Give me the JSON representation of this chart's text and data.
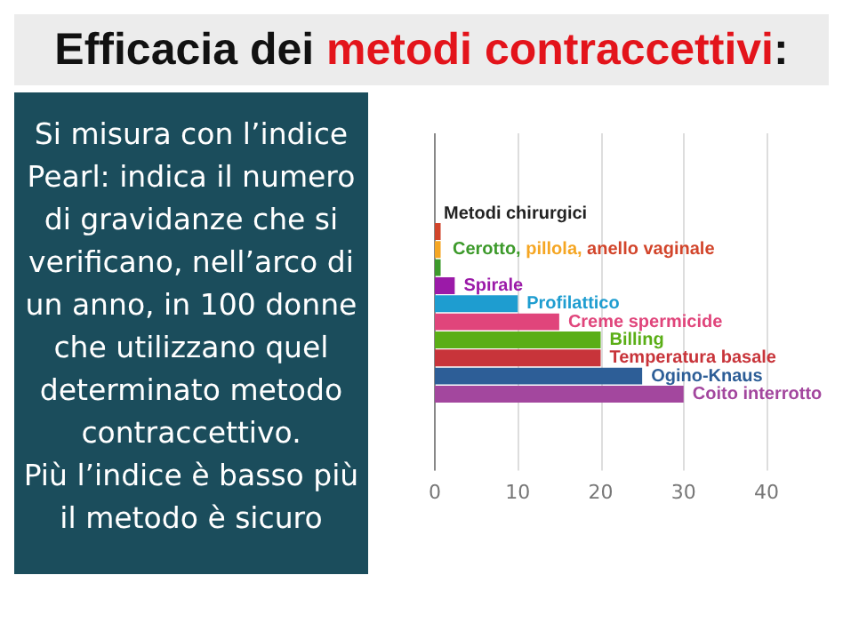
{
  "chart_data": {
    "type": "bar",
    "orientation": "horizontal",
    "title": "Efficacia dei metodi contraccettivi:",
    "categories": [
      "Metodi chirurgici",
      null,
      null,
      null,
      "Spirale",
      "Profilattico",
      "Creme spermicide",
      "Billing",
      "Temperatura basale",
      "Ogino-Knaus",
      "Coito interrotto"
    ],
    "values": [
      0,
      0.7,
      0.7,
      0.7,
      2.4,
      10,
      15,
      20,
      20,
      25,
      30
    ],
    "colors": [
      "#222222",
      "#d2452b",
      "#f5a623",
      "#3d9a2b",
      "#9b1aa8",
      "#1e9dd0",
      "#e0457b",
      "#5aae16",
      "#c8343a",
      "#2d5e97",
      "#a3479e"
    ],
    "xlim": [
      0,
      40
    ],
    "xticks": [
      0,
      10,
      20,
      30,
      40
    ],
    "grid": "x",
    "legend": false,
    "tick_labels": "x",
    "annotations": [
      "Cerotto, pillola, anello vaginale",
      "Si misura con l’indice Pearl: indica il numero di gravidanze che si verificano, nell’arco di un anno, in 100 donne che utilizzano quel determinato metodo contraccettivo.\nPiù l’indice è basso più il metodo è sicuro"
    ]
  }
}
